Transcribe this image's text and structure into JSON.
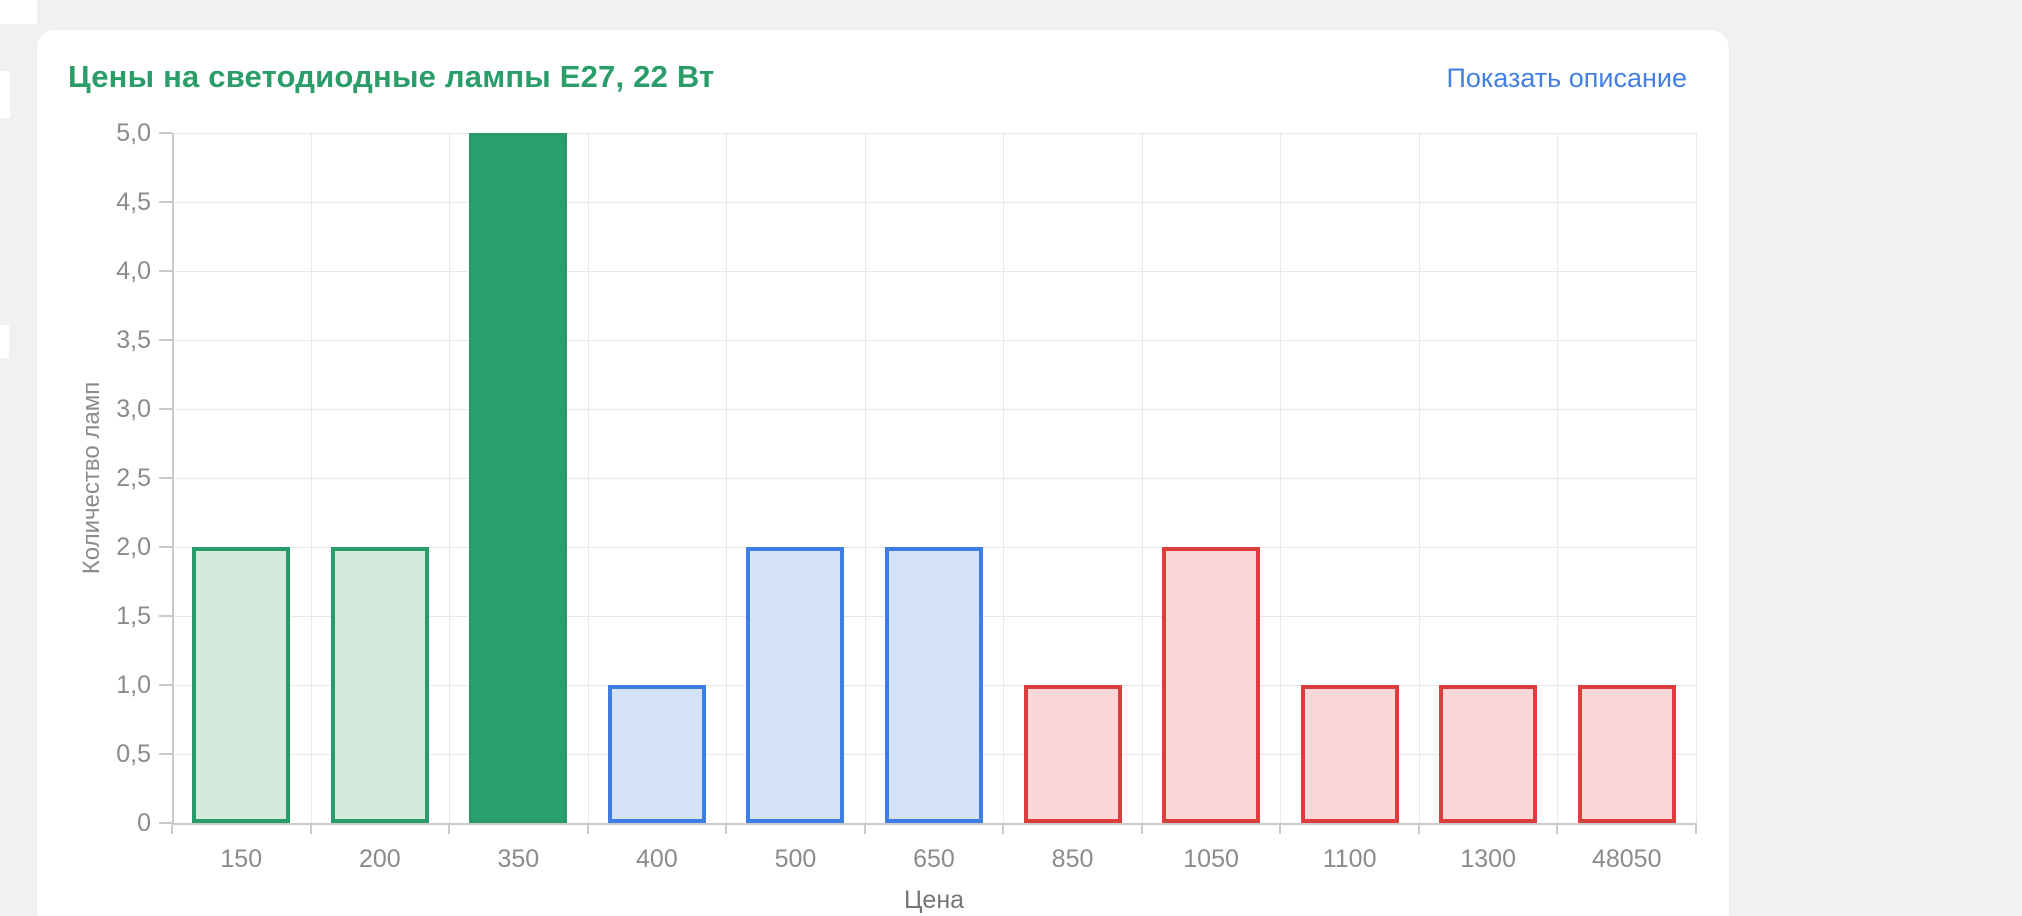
{
  "page": {
    "background": "#f1f1f2"
  },
  "card": {
    "title": "Цены на светодиодные лампы E27, 22 Вт",
    "title_color": "#2a9d68",
    "description_link_label": "Показать описание",
    "link_color": "#4480e3"
  },
  "chart_data": {
    "type": "bar",
    "title": "Цены на светодиодные лампы E27, 22 Вт",
    "xlabel": "Цена",
    "ylabel": "Количество ламп",
    "categories": [
      "150",
      "200",
      "350",
      "400",
      "500",
      "650",
      "850",
      "1050",
      "1100",
      "1300",
      "48050"
    ],
    "values": [
      2,
      2,
      5,
      1,
      2,
      2,
      1,
      2,
      1,
      1,
      1
    ],
    "bar_groups": [
      "green-light",
      "green-light",
      "green-solid",
      "blue",
      "blue",
      "blue",
      "red",
      "red",
      "red",
      "red",
      "red"
    ],
    "group_styles": {
      "green-light": {
        "fill": "#d4eadc",
        "border": "#279b68"
      },
      "green-solid": {
        "fill": "#29a06d",
        "border": "#279b68"
      },
      "blue": {
        "fill": "#d5e3f9",
        "border": "#3d7de4"
      },
      "red": {
        "fill": "#fcd7d7",
        "border": "#de3d3d"
      }
    },
    "ylim": [
      0,
      5
    ],
    "ytick_step": 0.5,
    "ytick_labels": [
      "0",
      "0,5",
      "1,0",
      "1,5",
      "2,0",
      "2,5",
      "3,0",
      "3,5",
      "4,0",
      "4,5",
      "5,0"
    ],
    "grid": true,
    "legend": false
  }
}
